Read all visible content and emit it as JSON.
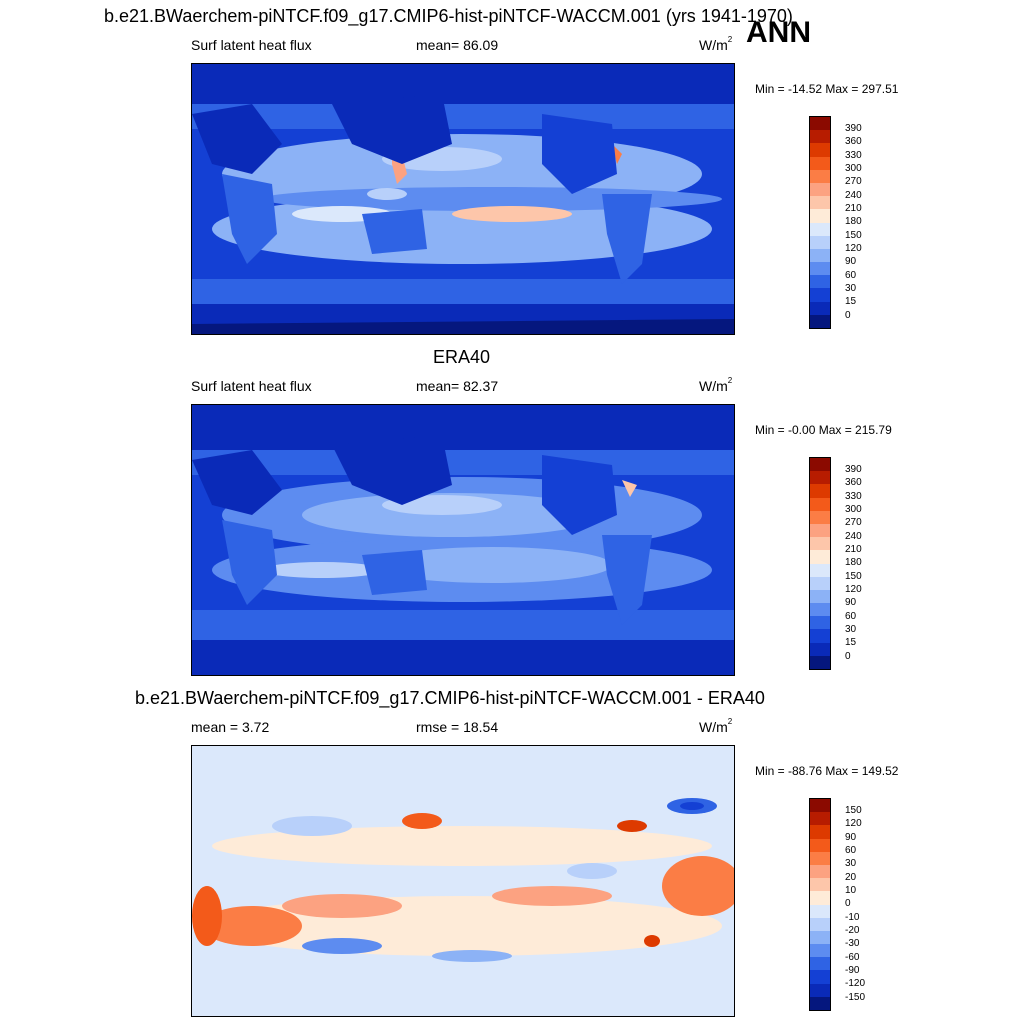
{
  "panel1": {
    "title": "b.e21.BWaerchem-piNTCF.f09_g17.CMIP6-hist-piNTCF-WACCM.001 (yrs 1941-1970)",
    "season": "ANN",
    "left": "Surf latent heat flux",
    "center": "mean=  86.09",
    "units_base": "W/m",
    "units_exp": "2",
    "minmax": "Min = -14.52 Max = 297.51",
    "levels": [
      "390",
      "360",
      "330",
      "300",
      "270",
      "240",
      "210",
      "180",
      "150",
      "120",
      "90",
      "60",
      "30",
      "15",
      "0"
    ]
  },
  "panel2": {
    "title": "ERA40",
    "left": "Surf latent heat flux",
    "center": "mean=  82.37",
    "units_base": "W/m",
    "units_exp": "2",
    "minmax": "Min =  -0.00 Max = 215.79",
    "levels": [
      "390",
      "360",
      "330",
      "300",
      "270",
      "240",
      "210",
      "180",
      "150",
      "120",
      "90",
      "60",
      "30",
      "15",
      "0"
    ]
  },
  "panel3": {
    "title": "b.e21.BWaerchem-piNTCF.f09_g17.CMIP6-hist-piNTCF-WACCM.001 - ERA40",
    "left": "mean =   3.72",
    "center": "rmse =  18.54",
    "units_base": "W/m",
    "units_exp": "2",
    "minmax": "Min = -88.76 Max = 149.52",
    "levels": [
      "150",
      "120",
      "90",
      "60",
      "30",
      "20",
      "10",
      "0",
      "-10",
      "-20",
      "-30",
      "-60",
      "-90",
      "-120",
      "-150"
    ]
  },
  "colors": {
    "abs_scale": [
      "#8b0a00",
      "#b71c00",
      "#dd3a00",
      "#f35a1a",
      "#fb7d45",
      "#fca281",
      "#fdc6aa",
      "#feebd8",
      "#dbe8fb",
      "#b8d0fa",
      "#8cb2f6",
      "#5d8cf0",
      "#2f63e4",
      "#1440d4",
      "#0a2ab8",
      "#05177e"
    ],
    "diff_scale": [
      "#8b0a00",
      "#b71c00",
      "#dd3a00",
      "#f35a1a",
      "#fb7d45",
      "#fca281",
      "#fdc6aa",
      "#feebd8",
      "#dbe8fb",
      "#b8d0fa",
      "#8cb2f6",
      "#5d8cf0",
      "#2f63e4",
      "#1440d4",
      "#0a2ab8",
      "#05177e"
    ]
  }
}
